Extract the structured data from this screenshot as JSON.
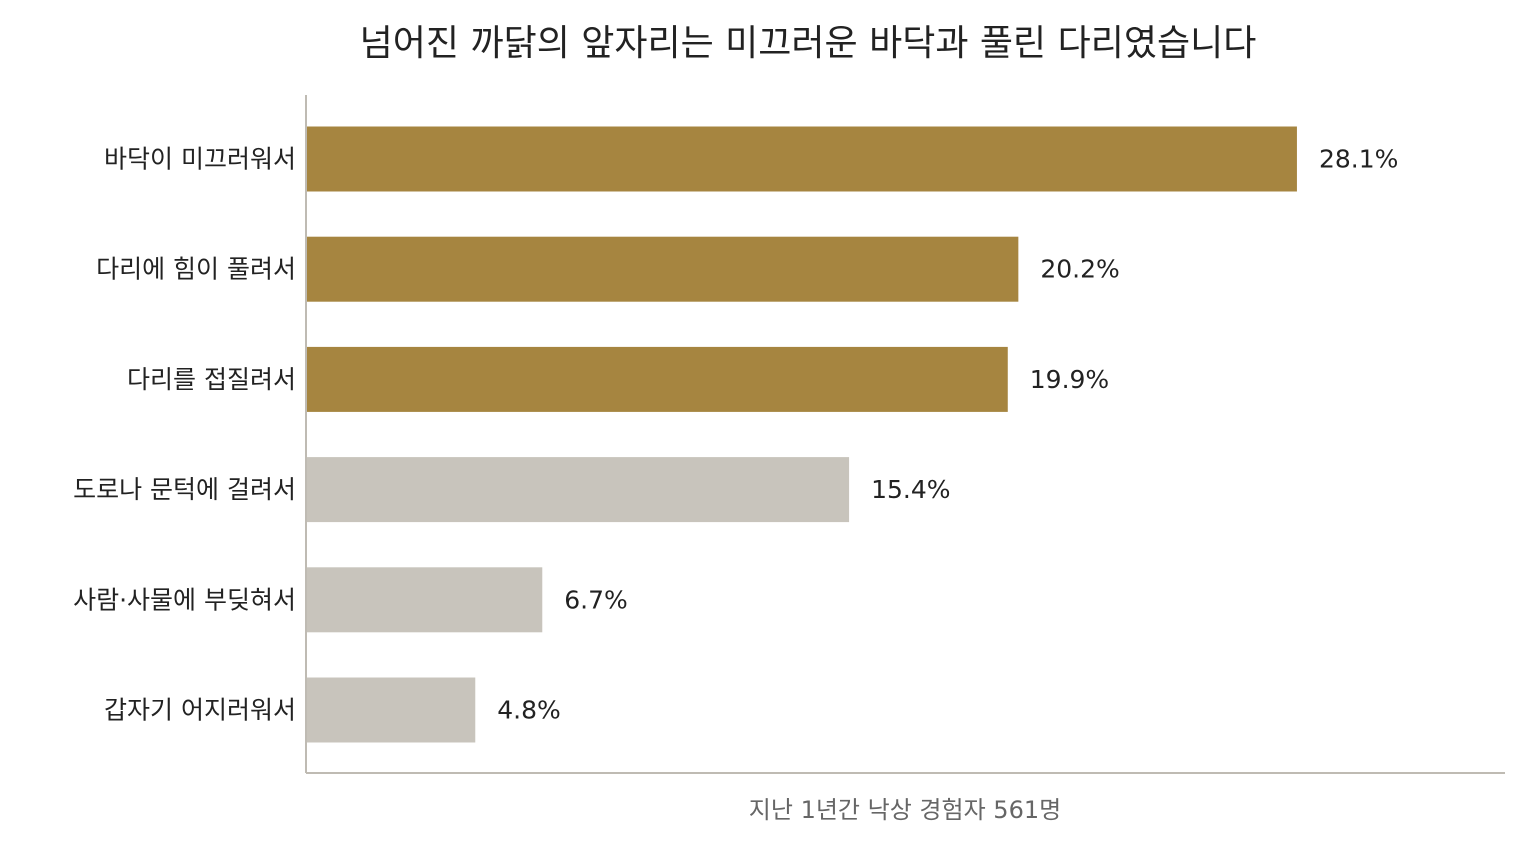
{
  "chart_data": {
    "type": "bar",
    "orientation": "horizontal",
    "title": "넘어진 까닭의 앞자리는 미끄러운 바닥과 풀린 다리였습니다",
    "xlabel": "지난 1년간 낙상 경험자 561명",
    "ylabel": "",
    "categories": [
      "바닥이 미끄러워서",
      "다리에 힘이 풀려서",
      "다리를 접질려서",
      "도로나 문턱에 걸려서",
      "사람·사물에 부딪혀서",
      "갑자기 어지러워서"
    ],
    "values": [
      28.1,
      20.2,
      19.9,
      15.4,
      6.7,
      4.8
    ],
    "value_labels": [
      "28.1%",
      "20.2%",
      "19.9%",
      "15.4%",
      "6.7%",
      "4.8%"
    ],
    "xlim": [
      0,
      34
    ],
    "grid": false,
    "legend": "none",
    "highlight_count": 3,
    "colors": {
      "highlight": "#A68540",
      "muted": "#C8C4BC",
      "axis": "#BFBBB3"
    }
  }
}
